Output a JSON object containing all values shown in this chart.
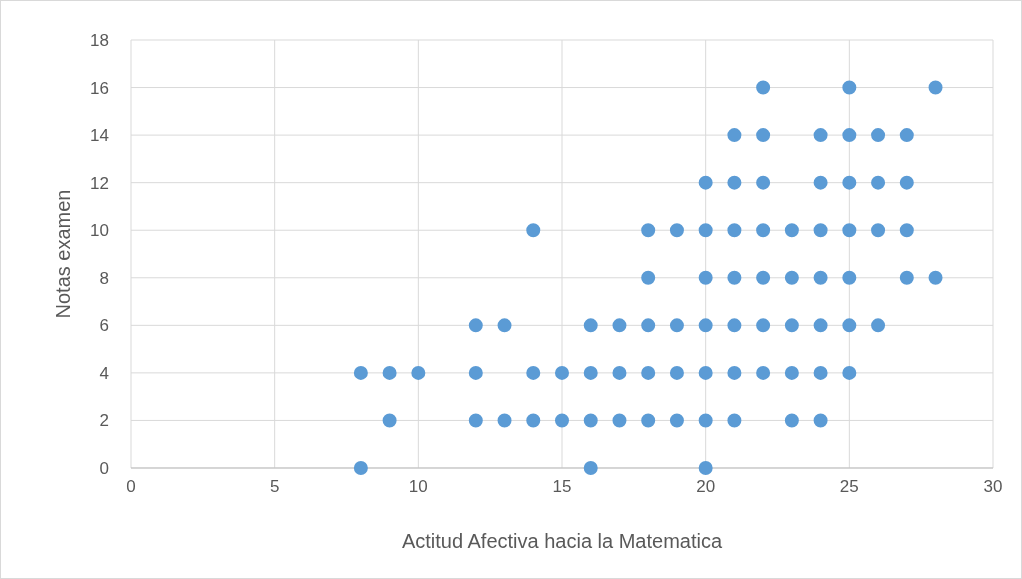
{
  "chart_data": {
    "type": "scatter",
    "xlabel": "Actitud Afectiva hacia la Matematica",
    "ylabel": "Notas examen",
    "xlim": [
      0,
      30
    ],
    "xticks": [
      0,
      5,
      10,
      15,
      20,
      25,
      30
    ],
    "ylim": [
      0,
      18
    ],
    "yticks": [
      0,
      2,
      4,
      6,
      8,
      10,
      12,
      14,
      16,
      18
    ],
    "grid": true,
    "marker": "circle",
    "series": [
      {
        "color": "#5b9bd5",
        "x": [
          22,
          25,
          28,
          21,
          22,
          24,
          25,
          26,
          27,
          20,
          21,
          22,
          24,
          25,
          26,
          27,
          14,
          18,
          19,
          20,
          21,
          22,
          23,
          24,
          25,
          26,
          27,
          18,
          20,
          21,
          22,
          23,
          24,
          25,
          27,
          28,
          12,
          13,
          16,
          17,
          18,
          19,
          20,
          21,
          22,
          23,
          24,
          25,
          26,
          8,
          9,
          10,
          12,
          14,
          15,
          16,
          17,
          18,
          19,
          20,
          21,
          22,
          23,
          24,
          25,
          9,
          12,
          13,
          14,
          15,
          16,
          17,
          18,
          19,
          20,
          21,
          23,
          24,
          8,
          16,
          20
        ],
        "values": [
          16,
          16,
          16,
          14,
          14,
          14,
          14,
          14,
          14,
          12,
          12,
          12,
          12,
          12,
          12,
          12,
          10,
          10,
          10,
          10,
          10,
          10,
          10,
          10,
          10,
          10,
          10,
          8,
          8,
          8,
          8,
          8,
          8,
          8,
          8,
          8,
          6,
          6,
          6,
          6,
          6,
          6,
          6,
          6,
          6,
          6,
          6,
          6,
          6,
          4,
          4,
          4,
          4,
          4,
          4,
          4,
          4,
          4,
          4,
          4,
          4,
          4,
          4,
          4,
          4,
          2,
          2,
          2,
          2,
          2,
          2,
          2,
          2,
          2,
          2,
          2,
          2,
          2,
          0,
          0,
          0
        ]
      }
    ]
  }
}
